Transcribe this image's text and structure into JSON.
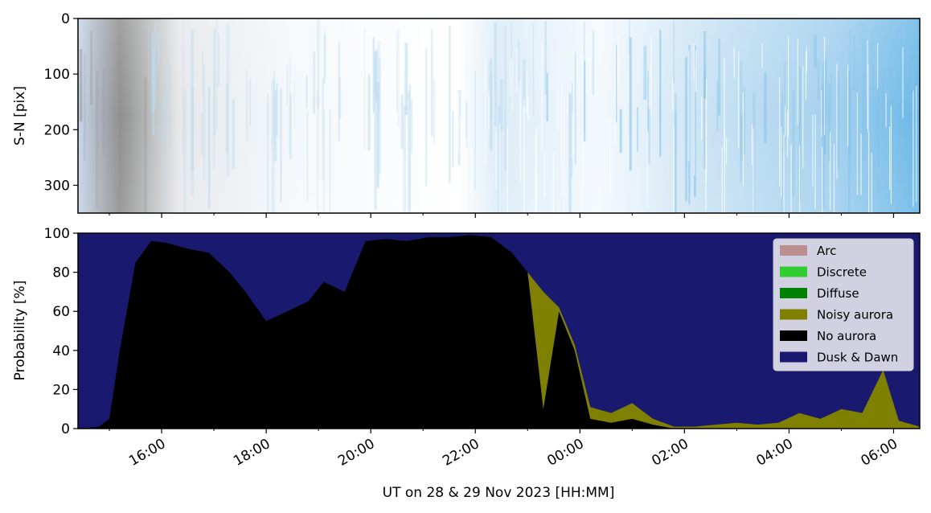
{
  "chart_data": [
    {
      "type": "heatmap",
      "title": "",
      "ylabel": "S-N [pix]",
      "ylim": [
        350,
        0
      ],
      "y_ticks": [
        "0",
        "100",
        "200",
        "300"
      ],
      "y_tick_values": [
        0,
        100,
        200,
        300
      ],
      "x_ticks": [],
      "colors": {
        "low": "#ffffff",
        "mid": "#a9d4ee",
        "high": "#6bb8e8",
        "dark": "#8f8f8f"
      }
    },
    {
      "type": "area",
      "title": "",
      "xlabel": "UT on 28 & 29 Nov 2023 [HH:MM]",
      "ylabel": "Probability [%]",
      "ylim": [
        0,
        100
      ],
      "xlim_hours": [
        14.4,
        30.5
      ],
      "x_ticks": [
        "16:00",
        "18:00",
        "20:00",
        "22:00",
        "00:00",
        "02:00",
        "04:00",
        "06:00"
      ],
      "x_tick_hours": [
        16,
        18,
        20,
        22,
        24,
        26,
        28,
        30
      ],
      "y_ticks": [
        "0",
        "20",
        "40",
        "60",
        "80",
        "100"
      ],
      "y_tick_values": [
        0,
        20,
        40,
        60,
        80,
        100
      ],
      "legend_position": "top-right",
      "legend": [
        {
          "label": "Arc",
          "color": "#bc8f8f"
        },
        {
          "label": "Discrete",
          "color": "#32cd32"
        },
        {
          "label": "Diffuse",
          "color": "#008000"
        },
        {
          "label": "Noisy aurora",
          "color": "#808000"
        },
        {
          "label": "No aurora",
          "color": "#000000"
        },
        {
          "label": "Dusk & Dawn",
          "color": "#191970"
        }
      ],
      "x": [
        14.4,
        14.8,
        15.0,
        15.2,
        15.5,
        15.8,
        16.1,
        16.5,
        16.9,
        17.3,
        17.6,
        18.0,
        18.4,
        18.8,
        19.1,
        19.5,
        19.9,
        20.3,
        20.7,
        21.1,
        21.5,
        21.9,
        22.3,
        22.7,
        23.0,
        23.3,
        23.6,
        23.9,
        24.2,
        24.6,
        25.0,
        25.4,
        25.8,
        26.2,
        26.6,
        27.0,
        27.4,
        27.8,
        28.2,
        28.6,
        29.0,
        29.4,
        29.8,
        30.1,
        30.5
      ],
      "series": [
        {
          "name": "No aurora",
          "values": [
            0,
            1,
            5,
            40,
            85,
            96,
            95,
            92,
            90,
            80,
            70,
            55,
            60,
            65,
            75,
            70,
            96,
            97,
            96,
            98,
            98,
            99,
            98,
            90,
            80,
            10,
            60,
            40,
            5,
            3,
            5,
            2,
            0,
            0,
            0,
            0,
            0,
            0,
            0,
            0,
            0,
            0,
            0,
            0,
            0
          ]
        },
        {
          "name": "Noisy aurora",
          "values": [
            0,
            0,
            0,
            0,
            0,
            0,
            0,
            0,
            0,
            0,
            0,
            0,
            0,
            0,
            0,
            0,
            0,
            0,
            0,
            0,
            0,
            0,
            0,
            0,
            0,
            60,
            2,
            3,
            6,
            5,
            8,
            3,
            1,
            1,
            2,
            3,
            2,
            3,
            8,
            5,
            10,
            8,
            30,
            4,
            1
          ]
        }
      ]
    }
  ]
}
